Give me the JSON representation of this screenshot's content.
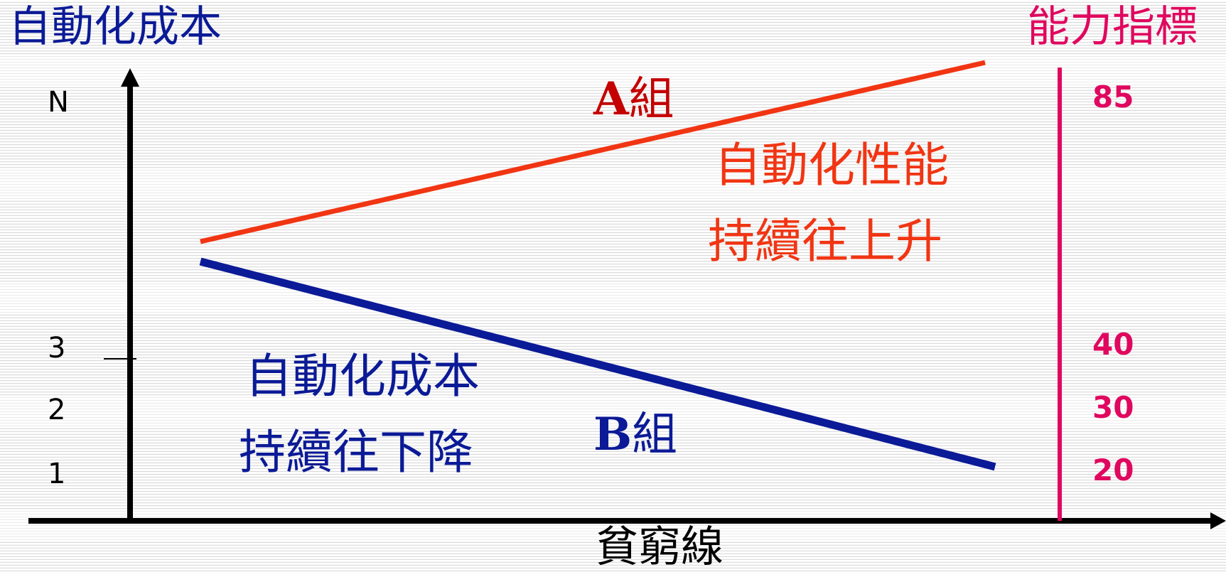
{
  "title_left": "自動化成本",
  "title_right": "能力指標",
  "left_ticks": {
    "n": "N",
    "t3": "3",
    "t2": "2",
    "t1": "1"
  },
  "right_values": {
    "v85": "85",
    "v40": "40",
    "v30": "30",
    "v20": "20"
  },
  "group_a": {
    "letter": "A",
    "suffix": "組"
  },
  "group_b": {
    "letter": "B",
    "suffix": "組"
  },
  "red_caption": {
    "line1": "自動化性能",
    "line2": "持續往上升"
  },
  "blue_caption": {
    "line1": "自動化成本",
    "line2": "持續往下降"
  },
  "x_label": "貧窮線",
  "colors": {
    "red": "#f13513",
    "blue": "#0b1a96",
    "pink": "#e0075f",
    "axis": "#000000"
  }
}
